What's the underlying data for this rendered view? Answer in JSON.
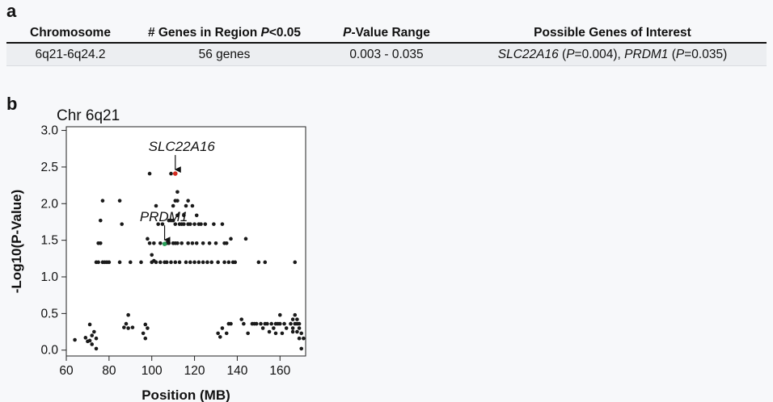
{
  "panel_a": {
    "label": "a",
    "headers": [
      "Chromosome",
      "# Genes in Region ",
      "<0.05",
      "P",
      "P",
      "-Value Range",
      "Possible Genes of Interest"
    ],
    "row": {
      "chromosome": "6q21-6q24.2",
      "genes": "56 genes",
      "pvalue_range": "0.003 - 0.035",
      "gene1": "SLC22A16",
      "gene1_p": "=0.004), ",
      "gene2": "PRDM1",
      "gene2_p": "=0.035)",
      "open_paren": " (",
      "p_letter": "P"
    }
  },
  "panel_b": {
    "label": "b"
  },
  "chart_data": {
    "type": "scatter",
    "title": "Chr 6q21",
    "xlabel": "Position (MB)",
    "ylabel": "-Log10(P-Value)",
    "xlim": [
      60,
      172
    ],
    "ylim": [
      -0.08,
      3.05
    ],
    "xticks": [
      60,
      80,
      100,
      120,
      140,
      160
    ],
    "yticks": [
      0.0,
      0.5,
      1.0,
      1.5,
      2.0,
      2.5,
      3.0
    ],
    "ytick_labels": [
      "0.0",
      "0.5",
      "1.0",
      "1.5",
      "2.0",
      "2.5",
      "3.0"
    ],
    "grid": false,
    "point_color": "#1a1a1a",
    "highlights": [
      {
        "label": "SLC22A16",
        "x": 111,
        "y": 2.41,
        "color": "#d32a1f"
      },
      {
        "label": "PRDM1",
        "x": 106,
        "y": 1.45,
        "color": "#2aa05a"
      }
    ],
    "points": [
      [
        64,
        0.14
      ],
      [
        69,
        0.17
      ],
      [
        70,
        0.12
      ],
      [
        71,
        0.35
      ],
      [
        71,
        0.13
      ],
      [
        72,
        0.2
      ],
      [
        72,
        0.08
      ],
      [
        73,
        0.25
      ],
      [
        74,
        0.16
      ],
      [
        74,
        0.02
      ],
      [
        74,
        1.2
      ],
      [
        75,
        1.46
      ],
      [
        75,
        1.2
      ],
      [
        76,
        1.46
      ],
      [
        76,
        1.77
      ],
      [
        77,
        2.04
      ],
      [
        77,
        1.2
      ],
      [
        78,
        1.2
      ],
      [
        79,
        1.2
      ],
      [
        80,
        1.2
      ],
      [
        85,
        2.04
      ],
      [
        85,
        1.2
      ],
      [
        86,
        1.72
      ],
      [
        87,
        0.31
      ],
      [
        88,
        0.36
      ],
      [
        89,
        0.48
      ],
      [
        89,
        0.3
      ],
      [
        90,
        1.2
      ],
      [
        91,
        0.31
      ],
      [
        95,
        1.2
      ],
      [
        96,
        0.23
      ],
      [
        97,
        0.16
      ],
      [
        97,
        0.35
      ],
      [
        98,
        0.3
      ],
      [
        98,
        1.52
      ],
      [
        99,
        2.41
      ],
      [
        99,
        1.46
      ],
      [
        100,
        1.3
      ],
      [
        100,
        1.2
      ],
      [
        101,
        1.46
      ],
      [
        101,
        1.22
      ],
      [
        102,
        1.97
      ],
      [
        102,
        1.2
      ],
      [
        103,
        1.72
      ],
      [
        104,
        1.46
      ],
      [
        104,
        1.2
      ],
      [
        105,
        1.72
      ],
      [
        106,
        1.2
      ],
      [
        107,
        1.46
      ],
      [
        107,
        1.2
      ],
      [
        108,
        1.77
      ],
      [
        108,
        1.46
      ],
      [
        109,
        2.41
      ],
      [
        109,
        1.77
      ],
      [
        109,
        1.2
      ],
      [
        110,
        1.97
      ],
      [
        110,
        1.77
      ],
      [
        110,
        1.46
      ],
      [
        111,
        2.04
      ],
      [
        111,
        1.72
      ],
      [
        111,
        1.46
      ],
      [
        111,
        1.2
      ],
      [
        112,
        2.16
      ],
      [
        112,
        2.04
      ],
      [
        112,
        1.84
      ],
      [
        112,
        1.46
      ],
      [
        113,
        1.72
      ],
      [
        113,
        1.2
      ],
      [
        114,
        1.72
      ],
      [
        114,
        1.46
      ],
      [
        115,
        1.84
      ],
      [
        115,
        1.72
      ],
      [
        116,
        1.97
      ],
      [
        116,
        1.2
      ],
      [
        117,
        2.04
      ],
      [
        117,
        1.72
      ],
      [
        117,
        1.46
      ],
      [
        118,
        1.72
      ],
      [
        118,
        1.2
      ],
      [
        119,
        1.97
      ],
      [
        119,
        1.46
      ],
      [
        120,
        1.72
      ],
      [
        120,
        1.2
      ],
      [
        121,
        1.84
      ],
      [
        121,
        1.46
      ],
      [
        122,
        1.72
      ],
      [
        122,
        1.2
      ],
      [
        123,
        1.72
      ],
      [
        124,
        1.46
      ],
      [
        124,
        1.2
      ],
      [
        125,
        1.72
      ],
      [
        126,
        1.2
      ],
      [
        127,
        1.46
      ],
      [
        128,
        1.2
      ],
      [
        129,
        1.72
      ],
      [
        130,
        1.46
      ],
      [
        131,
        1.2
      ],
      [
        131,
        0.23
      ],
      [
        132,
        0.18
      ],
      [
        133,
        1.72
      ],
      [
        133,
        0.3
      ],
      [
        134,
        1.46
      ],
      [
        134,
        1.2
      ],
      [
        135,
        1.46
      ],
      [
        135,
        0.23
      ],
      [
        136,
        1.2
      ],
      [
        136,
        0.36
      ],
      [
        137,
        1.52
      ],
      [
        137,
        0.36
      ],
      [
        138,
        1.2
      ],
      [
        139,
        1.2
      ],
      [
        142,
        0.42
      ],
      [
        143,
        0.36
      ],
      [
        144,
        1.52
      ],
      [
        145,
        0.23
      ],
      [
        147,
        0.36
      ],
      [
        148,
        0.36
      ],
      [
        149,
        0.36
      ],
      [
        150,
        1.2
      ],
      [
        151,
        0.36
      ],
      [
        152,
        0.3
      ],
      [
        153,
        1.2
      ],
      [
        153,
        0.36
      ],
      [
        154,
        0.36
      ],
      [
        155,
        0.25
      ],
      [
        156,
        0.36
      ],
      [
        157,
        0.3
      ],
      [
        158,
        0.36
      ],
      [
        158,
        0.23
      ],
      [
        159,
        0.36
      ],
      [
        160,
        0.36
      ],
      [
        160,
        0.48
      ],
      [
        161,
        0.23
      ],
      [
        162,
        0.36
      ],
      [
        163,
        0.3
      ],
      [
        165,
        0.36
      ],
      [
        166,
        0.42
      ],
      [
        166,
        0.3
      ],
      [
        167,
        0.36
      ],
      [
        167,
        1.2
      ],
      [
        167,
        0.48
      ],
      [
        168,
        0.36
      ],
      [
        168,
        0.25
      ],
      [
        169,
        0.36
      ],
      [
        169,
        0.16
      ],
      [
        170,
        0.23
      ],
      [
        170,
        0.02
      ],
      [
        171,
        0.16
      ],
      [
        168,
        0.42
      ],
      [
        166,
        0.25
      ],
      [
        169,
        0.3
      ]
    ]
  }
}
